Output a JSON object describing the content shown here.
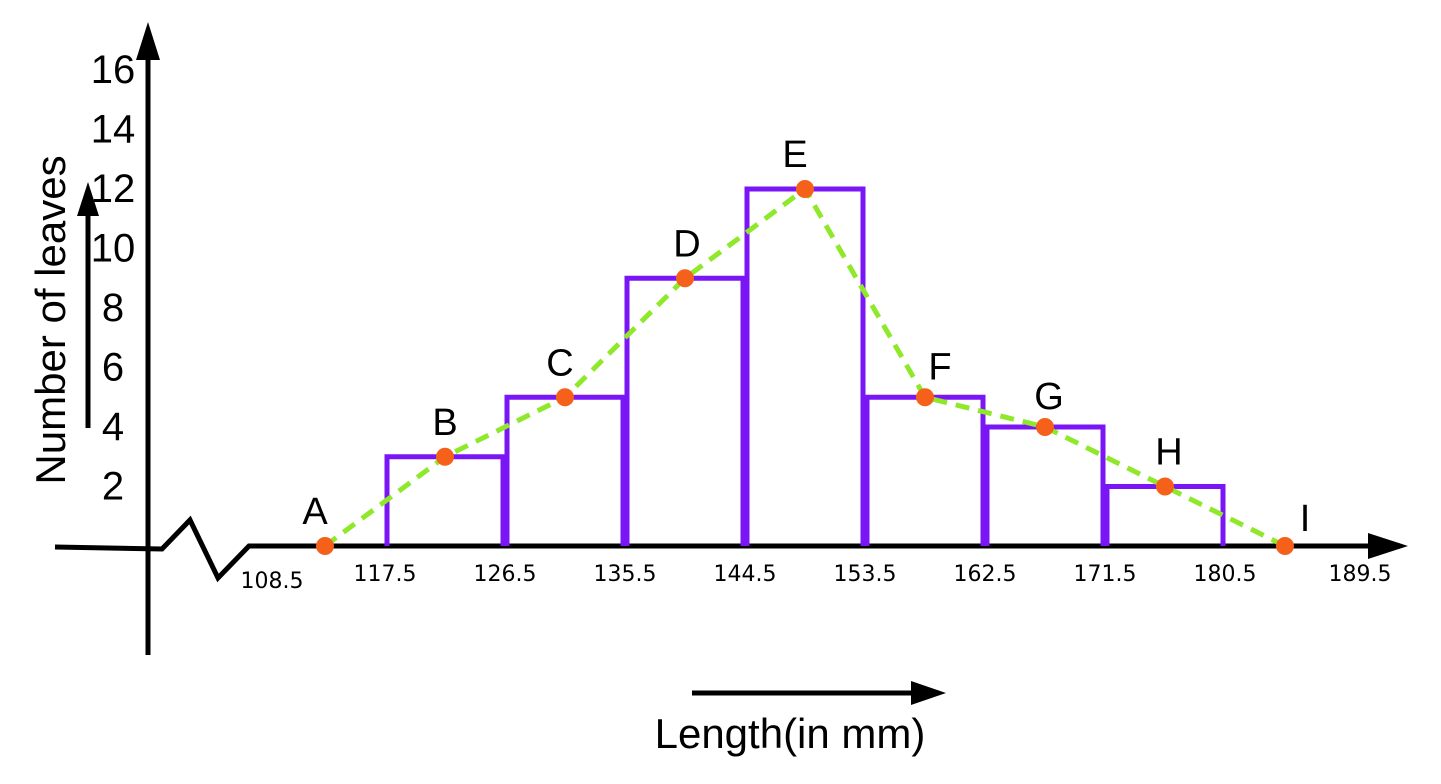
{
  "chart_data": {
    "type": "bar",
    "subtype": "histogram-with-frequency-polygon",
    "xlabel": "Length(in mm)",
    "ylabel": "Number of leaves",
    "y_ticks": [
      "2",
      "4",
      "6",
      "8",
      "10",
      "12",
      "14",
      "16"
    ],
    "x_ticks": [
      "108.5",
      "117.5",
      "126.5",
      "135.5",
      "144.5",
      "153.5",
      "162.5",
      "171.5",
      "180.5",
      "189.5"
    ],
    "ylim": [
      0,
      16
    ],
    "xlim": [
      108.5,
      189.5
    ],
    "bins": [
      {
        "from": 117.5,
        "to": 126.5,
        "value": 3
      },
      {
        "from": 126.5,
        "to": 135.5,
        "value": 5
      },
      {
        "from": 135.5,
        "to": 144.5,
        "value": 9
      },
      {
        "from": 144.5,
        "to": 153.5,
        "value": 12
      },
      {
        "from": 153.5,
        "to": 162.5,
        "value": 5
      },
      {
        "from": 162.5,
        "to": 171.5,
        "value": 4
      },
      {
        "from": 171.5,
        "to": 180.5,
        "value": 2
      }
    ],
    "polygon_points": [
      {
        "label": "A",
        "x": 113,
        "y": 0
      },
      {
        "label": "B",
        "x": 122,
        "y": 3
      },
      {
        "label": "C",
        "x": 131,
        "y": 5
      },
      {
        "label": "D",
        "x": 140,
        "y": 9
      },
      {
        "label": "E",
        "x": 149,
        "y": 12
      },
      {
        "label": "F",
        "x": 158,
        "y": 5
      },
      {
        "label": "G",
        "x": 167,
        "y": 4
      },
      {
        "label": "H",
        "x": 176,
        "y": 2
      },
      {
        "label": "I",
        "x": 185,
        "y": 0
      }
    ],
    "colors": {
      "bars": "#7a16f5",
      "polygon": "#8fe82a",
      "points": "#f5611a",
      "axes": "#000000"
    },
    "axis_break": true,
    "grid": false
  }
}
